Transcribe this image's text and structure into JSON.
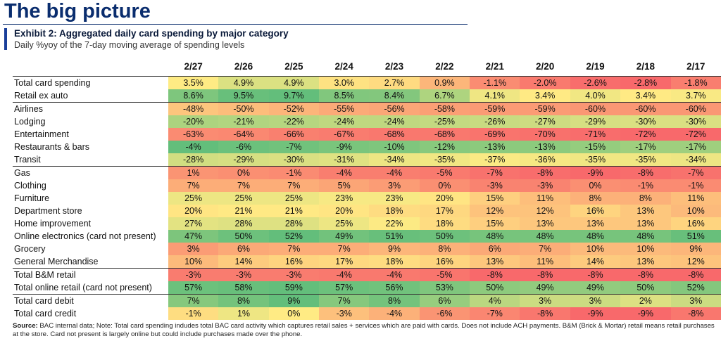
{
  "page_title": "The big picture",
  "exhibit_title": "Exhibit 2: Aggregated daily card spending by major category",
  "exhibit_subtitle": "Daily %yoy of the 7-day moving average of spending levels",
  "source": {
    "label": "Source:",
    "text": "BAC internal data; Note: Total card spending indudes  total BAC card activity which captures retail sales + services which are paid with cards. Does not include  ACH payments. B&M (Brick & Mortar) retail means retail purchases at the store. Card not present  is largely online but could include purchases  made over the phone."
  },
  "colors": {
    "low": "#f8696b",
    "mid": "#ffeb84",
    "high": "#63be7b"
  },
  "chart_data": {
    "type": "table",
    "columns": [
      "2/27",
      "2/26",
      "2/25",
      "2/24",
      "2/23",
      "2/22",
      "2/21",
      "2/20",
      "2/19",
      "2/18",
      "2/17"
    ],
    "groups": [
      {
        "rows": [
          {
            "label": "Total card spending",
            "values": [
              3.5,
              4.9,
              4.9,
              3.0,
              2.7,
              0.9,
              -1.1,
              -2.0,
              -2.6,
              -2.8,
              -1.8
            ],
            "display": [
              "3.5%",
              "4.9%",
              "4.9%",
              "3.0%",
              "2.7%",
              "0.9%",
              "-1.1%",
              "-2.0%",
              "-2.6%",
              "-2.8%",
              "-1.8%"
            ]
          },
          {
            "label": "Retail ex auto",
            "values": [
              8.6,
              9.5,
              9.7,
              8.5,
              8.4,
              6.7,
              4.1,
              3.4,
              4.0,
              3.4,
              3.7
            ],
            "display": [
              "8.6%",
              "9.5%",
              "9.7%",
              "8.5%",
              "8.4%",
              "6.7%",
              "4.1%",
              "3.4%",
              "4.0%",
              "3.4%",
              "3.7%"
            ]
          }
        ]
      },
      {
        "rows": [
          {
            "label": "Airlines",
            "values": [
              -48,
              -50,
              -52,
              -55,
              -56,
              -58,
              -59,
              -59,
              -60,
              -60,
              -60
            ],
            "display": [
              "-48%",
              "-50%",
              "-52%",
              "-55%",
              "-56%",
              "-58%",
              "-59%",
              "-59%",
              "-60%",
              "-60%",
              "-60%"
            ]
          },
          {
            "label": "Lodging",
            "values": [
              -20,
              -21,
              -22,
              -24,
              -24,
              -25,
              -26,
              -27,
              -29,
              -30,
              -30
            ],
            "display": [
              "-20%",
              "-21%",
              "-22%",
              "-24%",
              "-24%",
              "-25%",
              "-26%",
              "-27%",
              "-29%",
              "-30%",
              "-30%"
            ]
          },
          {
            "label": "Entertainment",
            "values": [
              -63,
              -64,
              -66,
              -67,
              -68,
              -68,
              -69,
              -70,
              -71,
              -72,
              -72
            ],
            "display": [
              "-63%",
              "-64%",
              "-66%",
              "-67%",
              "-68%",
              "-68%",
              "-69%",
              "-70%",
              "-71%",
              "-72%",
              "-72%"
            ]
          },
          {
            "label": "Restaurants & bars",
            "values": [
              -4,
              -6,
              -7,
              -9,
              -10,
              -12,
              -13,
              -13,
              -15,
              -17,
              -17
            ],
            "display": [
              "-4%",
              "-6%",
              "-7%",
              "-9%",
              "-10%",
              "-12%",
              "-13%",
              "-13%",
              "-15%",
              "-17%",
              "-17%"
            ]
          },
          {
            "label": "Transit",
            "values": [
              -28,
              -29,
              -30,
              -31,
              -34,
              -35,
              -37,
              -36,
              -35,
              -35,
              -34
            ],
            "display": [
              "-28%",
              "-29%",
              "-30%",
              "-31%",
              "-34%",
              "-35%",
              "-37%",
              "-36%",
              "-35%",
              "-35%",
              "-34%"
            ]
          }
        ]
      },
      {
        "rows": [
          {
            "label": "Gas",
            "values": [
              1,
              0,
              -1,
              -4,
              -4,
              -5,
              -7,
              -8,
              -9,
              -8,
              -7
            ],
            "display": [
              "1%",
              "0%",
              "-1%",
              "-4%",
              "-4%",
              "-5%",
              "-7%",
              "-8%",
              "-9%",
              "-8%",
              "-7%"
            ]
          },
          {
            "label": "Clothing",
            "values": [
              7,
              7,
              7,
              5,
              3,
              0,
              -3,
              -3,
              0,
              -1,
              -1
            ],
            "display": [
              "7%",
              "7%",
              "7%",
              "5%",
              "3%",
              "0%",
              "-3%",
              "-3%",
              "0%",
              "-1%",
              "-1%"
            ]
          },
          {
            "label": "Furniture",
            "values": [
              25,
              25,
              25,
              23,
              23,
              20,
              15,
              11,
              8,
              8,
              11
            ],
            "display": [
              "25%",
              "25%",
              "25%",
              "23%",
              "23%",
              "20%",
              "15%",
              "11%",
              "8%",
              "8%",
              "11%"
            ]
          },
          {
            "label": "Department store",
            "values": [
              20,
              21,
              21,
              20,
              18,
              17,
              12,
              12,
              16,
              13,
              10
            ],
            "display": [
              "20%",
              "21%",
              "21%",
              "20%",
              "18%",
              "17%",
              "12%",
              "12%",
              "16%",
              "13%",
              "10%"
            ]
          },
          {
            "label": "Home improvement",
            "values": [
              27,
              28,
              28,
              25,
              22,
              18,
              15,
              13,
              13,
              13,
              16
            ],
            "display": [
              "27%",
              "28%",
              "28%",
              "25%",
              "22%",
              "18%",
              "15%",
              "13%",
              "13%",
              "13%",
              "16%"
            ]
          },
          {
            "label": "Online electronics (card not present)",
            "values": [
              47,
              50,
              52,
              49,
              51,
              50,
              48,
              48,
              48,
              48,
              51
            ],
            "display": [
              "47%",
              "50%",
              "52%",
              "49%",
              "51%",
              "50%",
              "48%",
              "48%",
              "48%",
              "48%",
              "51%"
            ]
          },
          {
            "label": "Grocery",
            "values": [
              3,
              6,
              7,
              7,
              9,
              8,
              6,
              7,
              10,
              10,
              9
            ],
            "display": [
              "3%",
              "6%",
              "7%",
              "7%",
              "9%",
              "8%",
              "6%",
              "7%",
              "10%",
              "10%",
              "9%"
            ]
          },
          {
            "label": "General Merchandise",
            "values": [
              10,
              14,
              16,
              17,
              18,
              16,
              13,
              11,
              14,
              13,
              12
            ],
            "display": [
              "10%",
              "14%",
              "16%",
              "17%",
              "18%",
              "16%",
              "13%",
              "11%",
              "14%",
              "13%",
              "12%"
            ]
          }
        ]
      },
      {
        "rows": [
          {
            "label": "Total B&M retail",
            "values": [
              -3,
              -3,
              -3,
              -4,
              -4,
              -5,
              -8,
              -8,
              -8,
              -8,
              -8
            ],
            "display": [
              "-3%",
              "-3%",
              "-3%",
              "-4%",
              "-4%",
              "-5%",
              "-8%",
              "-8%",
              "-8%",
              "-8%",
              "-8%"
            ]
          },
          {
            "label": "Total online retail (card not present)",
            "values": [
              57,
              58,
              59,
              57,
              56,
              53,
              50,
              49,
              49,
              50,
              52
            ],
            "display": [
              "57%",
              "58%",
              "59%",
              "57%",
              "56%",
              "53%",
              "50%",
              "49%",
              "49%",
              "50%",
              "52%"
            ]
          }
        ]
      },
      {
        "rows": [
          {
            "label": "Total card debit",
            "values": [
              7,
              8,
              9,
              7,
              8,
              6,
              4,
              3,
              3,
              2,
              3
            ],
            "display": [
              "7%",
              "8%",
              "9%",
              "7%",
              "8%",
              "6%",
              "4%",
              "3%",
              "3%",
              "2%",
              "3%"
            ]
          },
          {
            "label": "Total card credit",
            "values": [
              -1,
              1,
              0,
              -3,
              -4,
              -6,
              -7,
              -8,
              -9,
              -9,
              -8
            ],
            "display": [
              "-1%",
              "1%",
              "0%",
              "-3%",
              "-4%",
              "-6%",
              "-7%",
              "-8%",
              "-9%",
              "-9%",
              "-8%"
            ]
          }
        ]
      }
    ]
  }
}
